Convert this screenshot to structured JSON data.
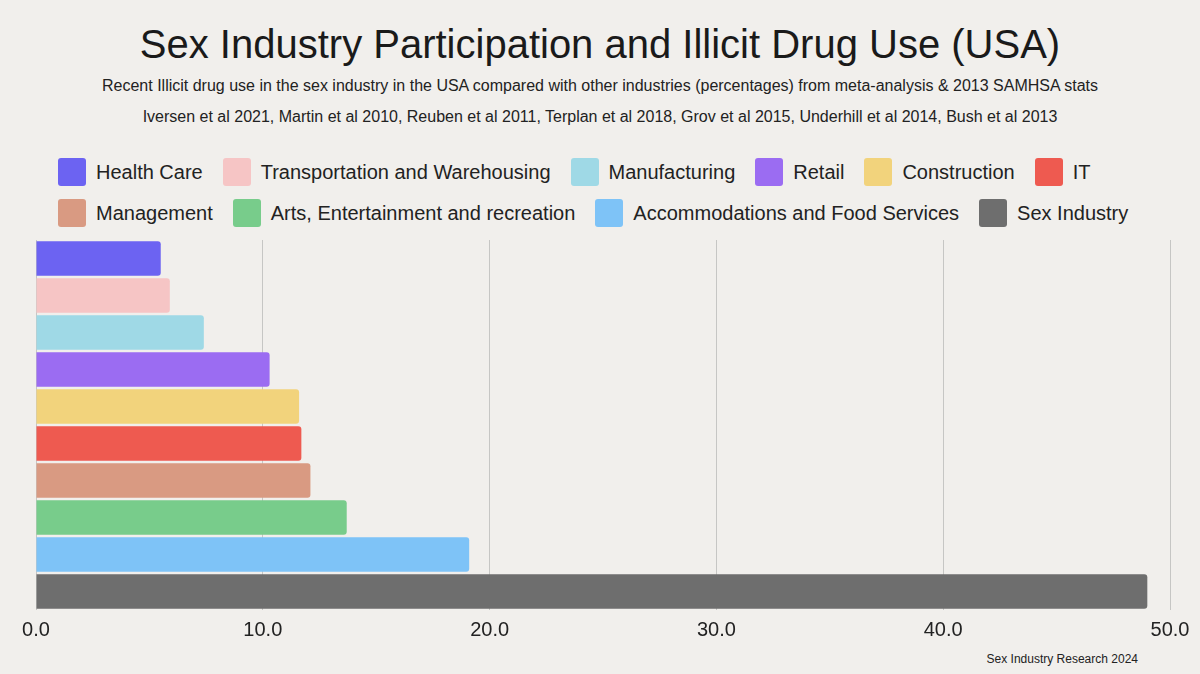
{
  "chart_data": {
    "type": "bar",
    "title": "Sex Industry Participation and Illicit Drug Use (USA)",
    "subtitle": [
      "Recent Illicit drug use in the sex industry in the USA compared with other industries (percentages) from meta-analysis & 2013 SAMHSA stats",
      "Iversen et al 2021, Martin et al 2010, Reuben et al 2011, Terplan et al 2018, Grov et al 2015, Underhill et al 2014, Bush et al 2013"
    ],
    "annotation": "Sex Industry Research 2024",
    "orientation": "horizontal",
    "categories": [
      "Health Care",
      "Transportation and Warehousing",
      "Manufacturing",
      "Retail",
      "Construction",
      "IT",
      "Management",
      "Arts, Entertainment and recreation",
      "Accommodations and Food Services",
      "Sex Industry"
    ],
    "values": [
      5.5,
      5.9,
      7.4,
      10.3,
      11.6,
      11.7,
      12.1,
      13.7,
      19.1,
      49.0
    ],
    "colors": [
      "#6c63f2",
      "#f6c5c5",
      "#9fd9e6",
      "#9b6cf2",
      "#f2d37c",
      "#ee5a50",
      "#d99a82",
      "#78cc8b",
      "#7ec3f7",
      "#6e6e6e"
    ],
    "xlim": [
      0,
      50
    ],
    "xticks": [
      {
        "value": 0,
        "label": "0.0"
      },
      {
        "value": 10,
        "label": "10.0"
      },
      {
        "value": 20,
        "label": "20.0"
      },
      {
        "value": 30,
        "label": "30.0"
      },
      {
        "value": 40,
        "label": "40.0"
      },
      {
        "value": 50,
        "label": "50.0"
      }
    ],
    "grid": true,
    "legend": "top",
    "tick_labels": "x"
  }
}
